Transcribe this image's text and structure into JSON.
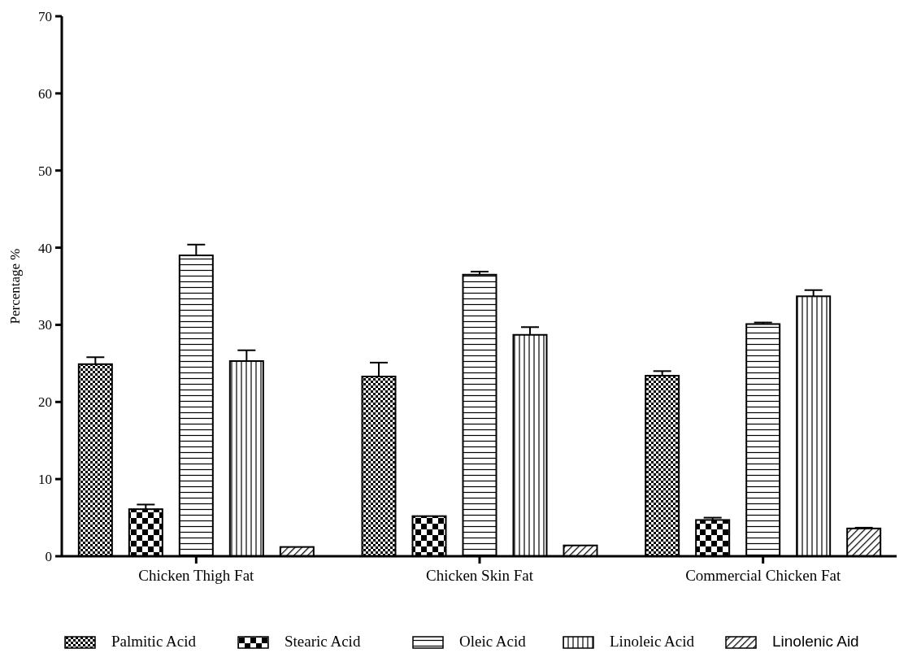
{
  "chart_data": {
    "type": "bar",
    "ylabel": "Percentage %",
    "categories": [
      "Chicken Thigh Fat",
      "Chicken Skin Fat",
      "Commercial Chicken Fat"
    ],
    "series": [
      {
        "name": "Palmitic Acid",
        "color": "#000000",
        "values": [
          24.9,
          23.3,
          23.4
        ],
        "errors": [
          0.9,
          1.8,
          0.6
        ]
      },
      {
        "name": "Stearic Acid",
        "color": "#000000",
        "values": [
          6.1,
          5.2,
          4.7
        ],
        "errors": [
          0.6,
          0,
          0.3
        ]
      },
      {
        "name": "Oleic Acid",
        "color": "#000000",
        "values": [
          39.0,
          36.5,
          30.1
        ],
        "errors": [
          1.4,
          0.4,
          0.2
        ]
      },
      {
        "name": "Linoleic Acid",
        "color": "#000000",
        "values": [
          25.3,
          28.7,
          33.7
        ],
        "errors": [
          1.4,
          1.0,
          0.8
        ]
      },
      {
        "name": "Linolenic Aid",
        "color": "#000000",
        "values": [
          1.2,
          1.4,
          3.6
        ],
        "errors": [
          0,
          0,
          0.1
        ]
      }
    ],
    "ylim": [
      0,
      70
    ],
    "yticks": [
      0,
      10,
      20,
      30,
      40,
      50,
      60,
      70
    ],
    "grid": false,
    "legend": "bottom"
  }
}
